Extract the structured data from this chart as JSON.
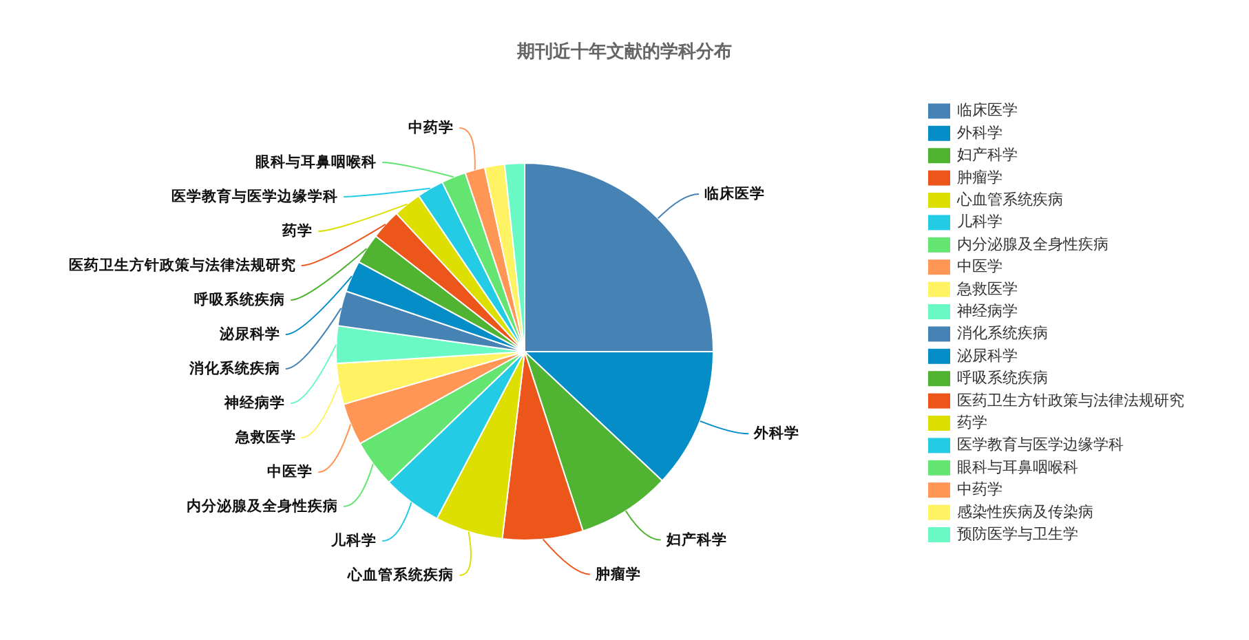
{
  "chart_data": {
    "type": "pie",
    "title": "期刊近十年文献的学科分布",
    "categories": [
      "临床医学",
      "外科学",
      "妇产科学",
      "肿瘤学",
      "心血管系统疾病",
      "儿科学",
      "内分泌腺及全身性疾病",
      "中医学",
      "急救医学",
      "神经病学",
      "消化系统疾病",
      "泌尿科学",
      "呼吸系统疾病",
      "医药卫生方针政策与法律法规研究",
      "药学",
      "医学教育与医学边缘学科",
      "眼科与耳鼻咽喉科",
      "中药学",
      "感染性疾病及传染病",
      "预防医学与卫生学"
    ],
    "values": [
      25,
      12,
      8,
      6.9,
      5.8,
      5.1,
      4.1,
      3.6,
      3.5,
      3.2,
      3.0,
      2.7,
      2.6,
      2.6,
      2.4,
      2.3,
      2.1,
      1.7,
      1.7,
      1.7
    ],
    "colors": [
      "#4682b4",
      "#058dc7",
      "#50b432",
      "#ed561b",
      "#dddf00",
      "#24cbe5",
      "#64e572",
      "#ff9655",
      "#fff263",
      "#6af9c4",
      "#4682b4",
      "#058dc7",
      "#50b432",
      "#ed561b",
      "#dddf00",
      "#24cbe5",
      "#64e572",
      "#ff9655",
      "#fff263",
      "#6af9c4"
    ],
    "legend": "right"
  }
}
